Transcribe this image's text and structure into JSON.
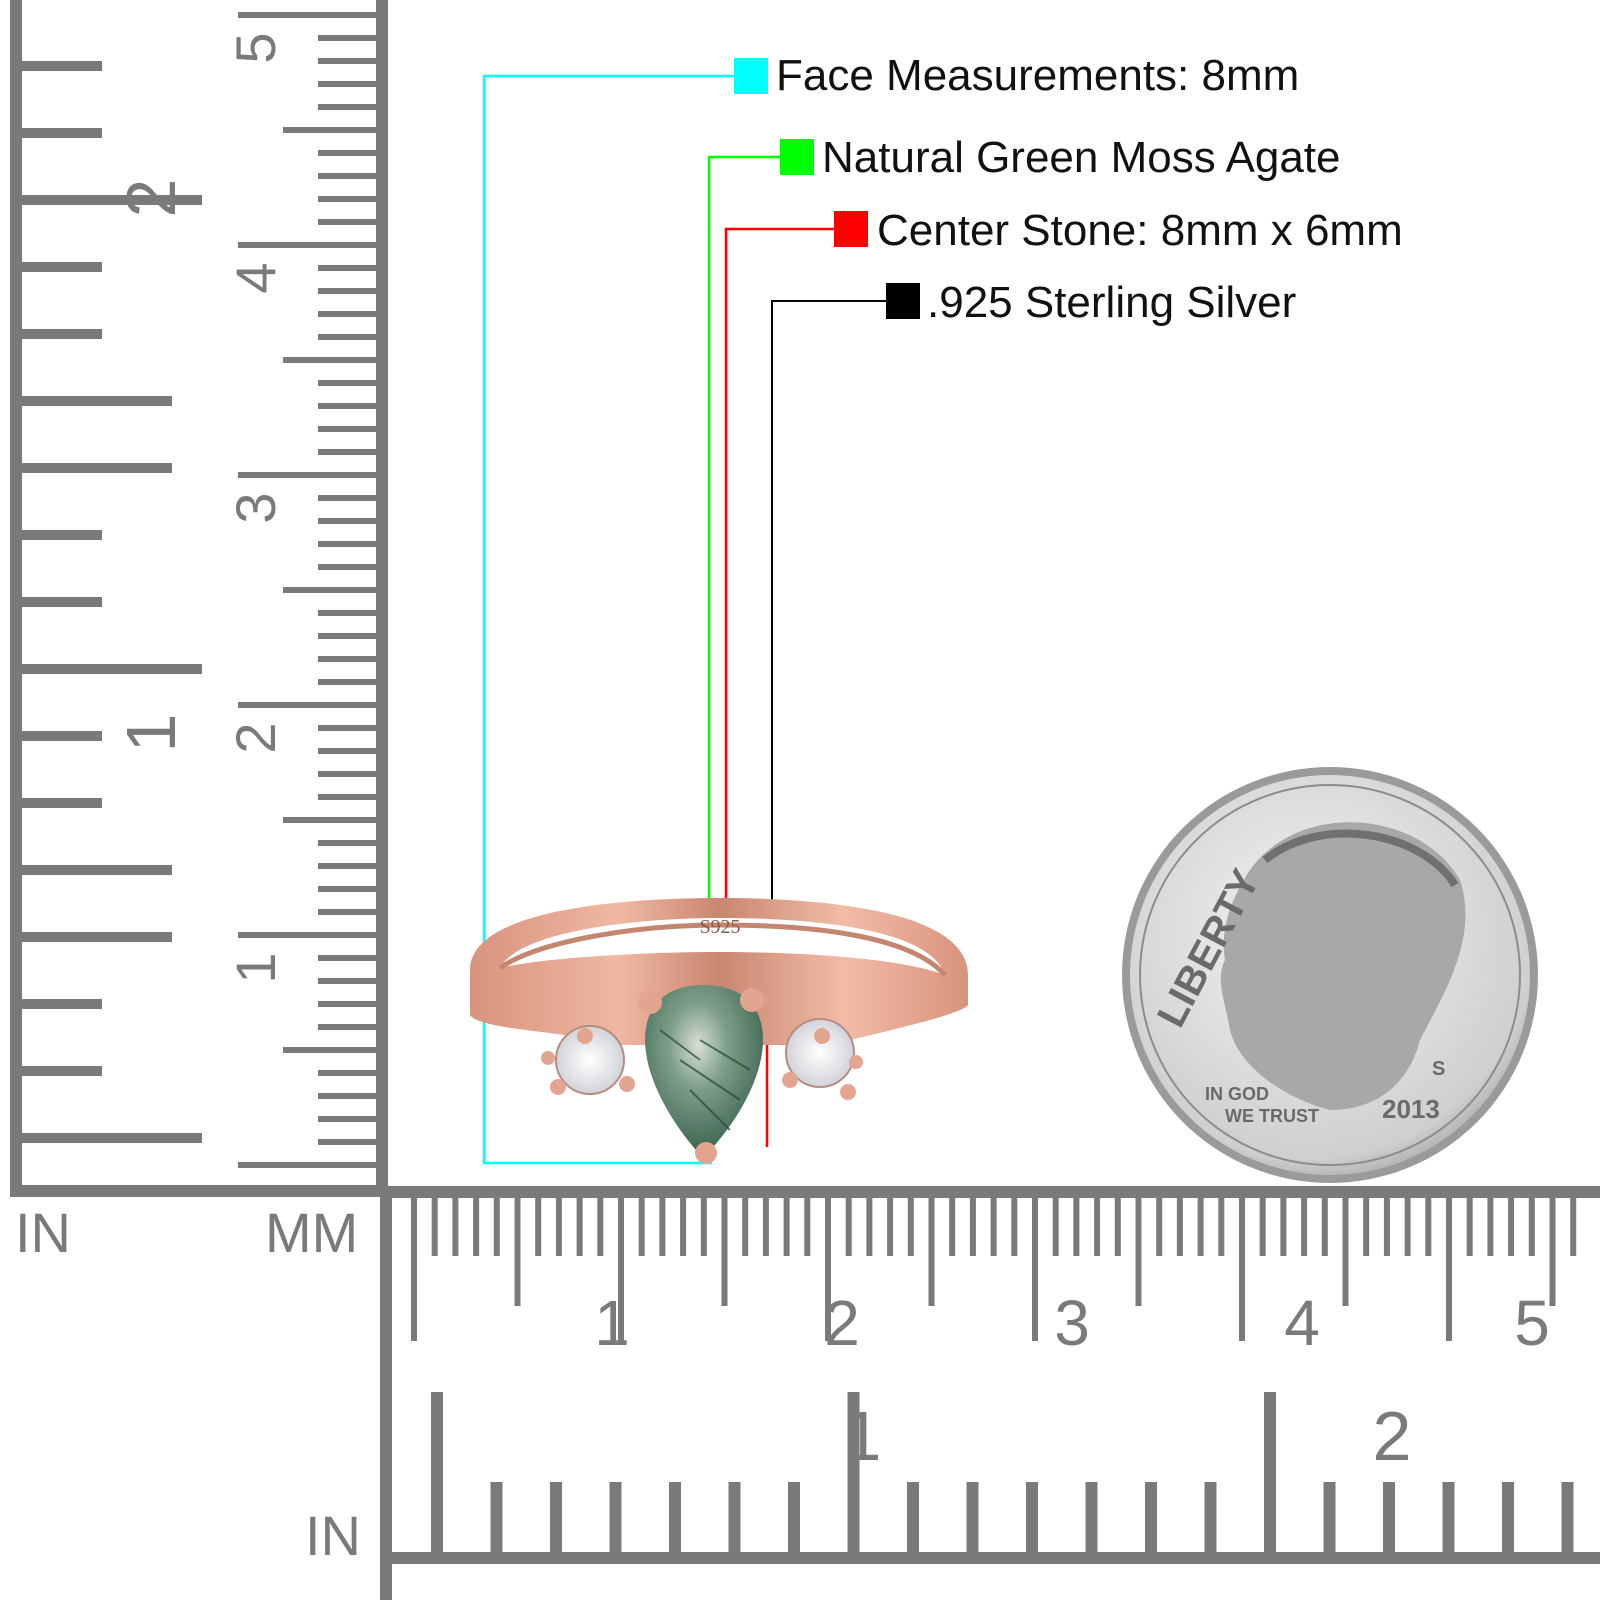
{
  "callouts": [
    {
      "text": "Face Measurements: 8mm",
      "color": "#00ffff"
    },
    {
      "text": "Natural Green Moss Agate",
      "color": "#00ff00"
    },
    {
      "text": "Center Stone: 8mm x 6mm",
      "color": "#ff0000"
    },
    {
      "text": ".925 Sterling Silver",
      "color": "#000000"
    }
  ],
  "ring": {
    "stamp": "S925",
    "metal_color": "#e0a08a",
    "stone_color": "#4f7a66"
  },
  "ruler": {
    "unit_in_left": "IN",
    "unit_mm": "MM",
    "unit_in_bottom": "IN",
    "vertical_cm_labels": [
      "1",
      "2",
      "3",
      "4",
      "5"
    ],
    "vertical_in_labels": [
      "1",
      "2"
    ],
    "horizontal_cm_labels": [
      "1",
      "2",
      "3",
      "4",
      "5"
    ],
    "horizontal_in_labels": [
      "1",
      "2"
    ],
    "color": "#7a7a7a"
  },
  "coin": {
    "legend": "LIBERTY",
    "motto_1": "IN GOD",
    "motto_2": "WE TRUST",
    "year": "2013",
    "mint_mark": "S"
  }
}
